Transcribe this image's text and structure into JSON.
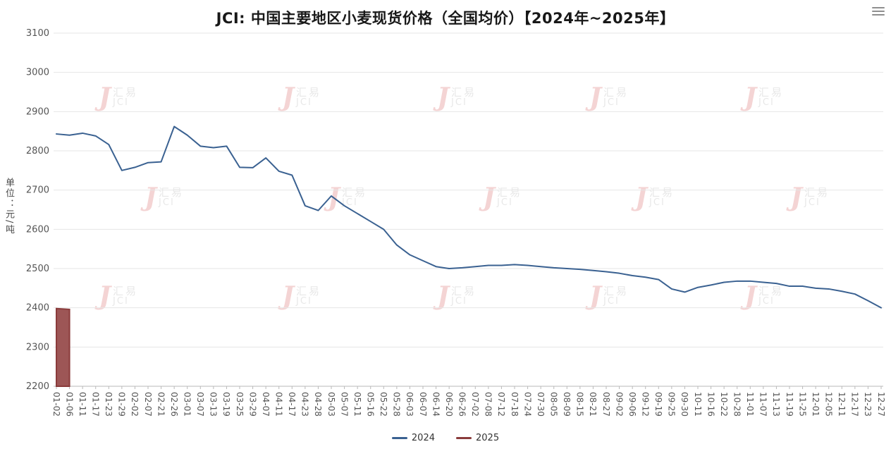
{
  "title": "JCI: 中国主要地区小麦现货价格（全国均价）【2024年~2025年】",
  "menu": {
    "name": "chart-options-menu"
  },
  "watermark": {
    "brand_cn": "汇易",
    "brand_en": "JCI",
    "accent": "#c93030"
  },
  "legend": [
    {
      "label": "2024",
      "color": "#3a6191"
    },
    {
      "label": "2025",
      "color": "#8a3b3b"
    }
  ],
  "chart_data": {
    "type": "line",
    "title": "JCI: 中国主要地区小麦现货价格（全国均价）【2024年~2025年】",
    "xlabel": "",
    "ylabel": "单位：元/吨",
    "ylim": [
      2200,
      3100
    ],
    "y_ticks": [
      2200,
      2300,
      2400,
      2500,
      2600,
      2700,
      2800,
      2900,
      3000,
      3100
    ],
    "grid": "horizontal",
    "legend_position": "bottom",
    "x": [
      "01-02",
      "01-06",
      "01-11",
      "01-17",
      "01-23",
      "01-29",
      "02-02",
      "02-07",
      "02-21",
      "02-26",
      "03-01",
      "03-07",
      "03-13",
      "03-19",
      "03-25",
      "03-29",
      "04-07",
      "04-11",
      "04-17",
      "04-23",
      "04-28",
      "05-03",
      "05-07",
      "05-11",
      "05-16",
      "05-22",
      "05-28",
      "06-03",
      "06-07",
      "06-14",
      "06-20",
      "06-26",
      "07-02",
      "07-08",
      "07-12",
      "07-18",
      "07-24",
      "07-30",
      "08-05",
      "08-09",
      "08-15",
      "08-21",
      "08-27",
      "09-02",
      "09-06",
      "09-12",
      "09-19",
      "09-25",
      "09-30",
      "10-11",
      "10-16",
      "10-22",
      "10-28",
      "11-01",
      "11-07",
      "11-13",
      "11-19",
      "11-25",
      "12-01",
      "12-05",
      "12-11",
      "12-17",
      "12-23",
      "12-27"
    ],
    "series": [
      {
        "name": "2024",
        "type": "line",
        "color": "#3a6191",
        "values": [
          2843,
          2840,
          2845,
          2838,
          2816,
          2750,
          2758,
          2770,
          2772,
          2862,
          2840,
          2812,
          2808,
          2812,
          2758,
          2757,
          2782,
          2748,
          2738,
          2660,
          2648,
          2685,
          2660,
          2640,
          2620,
          2600,
          2560,
          2535,
          2520,
          2505,
          2500,
          2502,
          2505,
          2508,
          2508,
          2510,
          2508,
          2505,
          2502,
          2500,
          2498,
          2495,
          2492,
          2488,
          2482,
          2478,
          2472,
          2448,
          2440,
          2452,
          2458,
          2465,
          2468,
          2468,
          2465,
          2462,
          2455,
          2455,
          2450,
          2448,
          2442,
          2435,
          2418,
          2400
        ]
      },
      {
        "name": "2025",
        "type": "area",
        "color": "#8a3b3b",
        "fill": "#9d5656",
        "values": [
          2398,
          2396
        ]
      }
    ]
  }
}
